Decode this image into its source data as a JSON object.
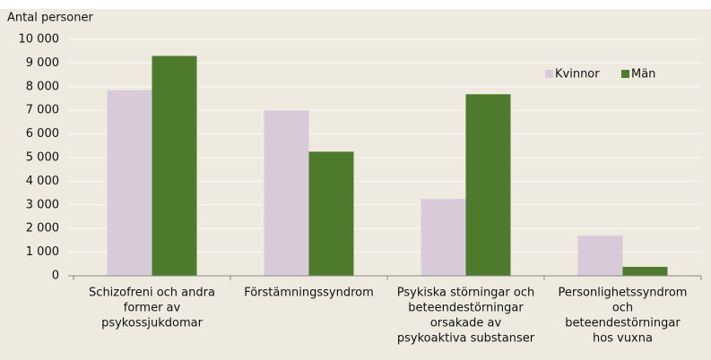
{
  "chart_data": {
    "type": "bar",
    "y_label": "Antal personer",
    "categories": [
      [
        "Schizofreni och andra",
        "former av",
        "psykossjukdomar"
      ],
      [
        "Förstämningssyndrom"
      ],
      [
        "Psykiska störningar och",
        "beteendestörningar",
        "orsakade av",
        "psykoaktiva substanser"
      ],
      [
        "Personlighetssyndrom",
        "och",
        "beteendestörningar",
        "hos vuxna"
      ]
    ],
    "series": [
      {
        "name": "Kvinnor",
        "color": "#d8cad9",
        "values": [
          7850,
          7000,
          3250,
          1700
        ]
      },
      {
        "name": "Män",
        "color": "#4d7a2d",
        "values": [
          9300,
          5250,
          7680,
          380
        ]
      }
    ],
    "ylim": [
      0,
      10000
    ],
    "yticks": [
      0,
      {
        "value": 1000,
        "label": "1 000"
      },
      {
        "value": 2000,
        "label": "2 000"
      },
      {
        "value": 3000,
        "label": "3 000"
      },
      {
        "value": 4000,
        "label": "4 000"
      },
      {
        "value": 5000,
        "label": "5 000"
      },
      {
        "value": 6000,
        "label": "6 000"
      },
      {
        "value": 7000,
        "label": "7 000"
      },
      {
        "value": 8000,
        "label": "8 000"
      },
      {
        "value": 9000,
        "label": "9 000"
      },
      {
        "value": 10000,
        "label": "10 000"
      }
    ],
    "grid": true,
    "legend": "upper right"
  }
}
